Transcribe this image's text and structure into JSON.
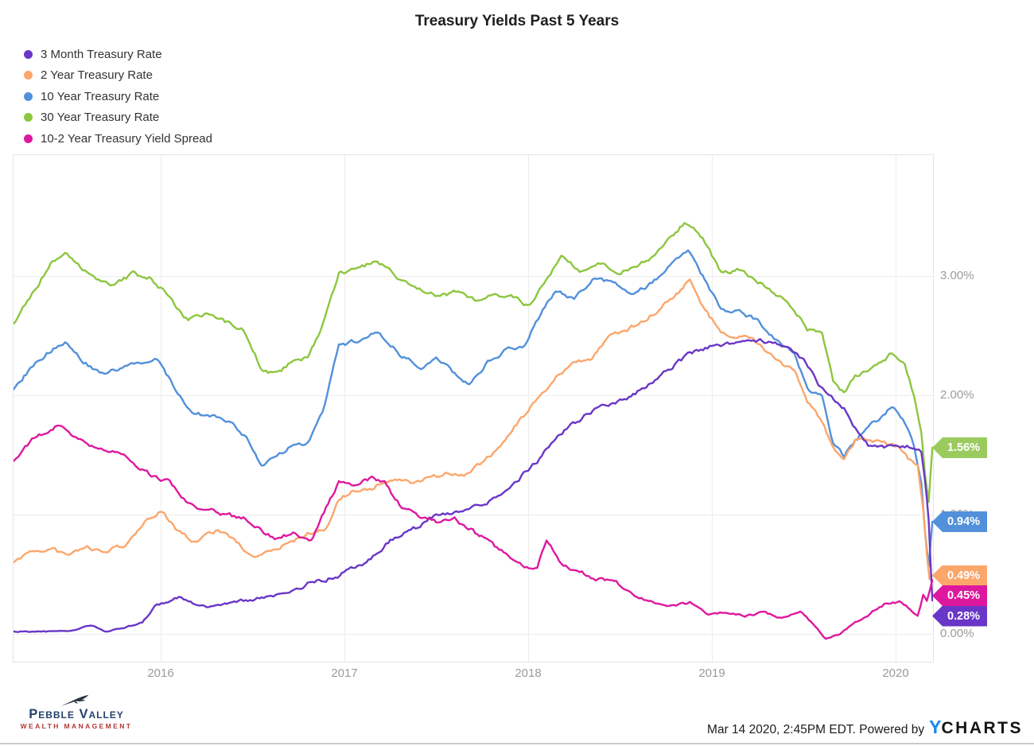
{
  "title": "Treasury Yields Past 5 Years",
  "chart_data": {
    "type": "line",
    "title": "Treasury Yields Past 5 Years",
    "legend_position": "top-left",
    "grid": true,
    "x_axis": {
      "tick_labels": [
        "2016",
        "2017",
        "2018",
        "2019",
        "2020"
      ],
      "tick_values": [
        2016,
        2017,
        2018,
        2019,
        2020
      ],
      "range": [
        2015.2,
        2020.2
      ]
    },
    "y_axis": {
      "tick_labels": [
        "3.00%",
        "2.00%",
        "1.00%",
        "0.00%"
      ],
      "tick_values": [
        3,
        2,
        1,
        0
      ],
      "unit": "%",
      "range": [
        -0.23,
        3.72
      ]
    },
    "series": [
      {
        "name": "3 Month Treasury Rate",
        "color": "#6936C7",
        "end_label": "0.28%",
        "end_value": 0.28,
        "points": [
          [
            2015.2,
            0.02
          ],
          [
            2015.35,
            0.02
          ],
          [
            2015.5,
            0.02
          ],
          [
            2015.62,
            0.07
          ],
          [
            2015.7,
            0.02
          ],
          [
            2015.8,
            0.05
          ],
          [
            2015.9,
            0.1
          ],
          [
            2015.98,
            0.25
          ],
          [
            2016.1,
            0.3
          ],
          [
            2016.25,
            0.23
          ],
          [
            2016.4,
            0.27
          ],
          [
            2016.55,
            0.3
          ],
          [
            2016.7,
            0.33
          ],
          [
            2016.8,
            0.42
          ],
          [
            2016.9,
            0.45
          ],
          [
            2017.0,
            0.51
          ],
          [
            2017.12,
            0.6
          ],
          [
            2017.25,
            0.78
          ],
          [
            2017.4,
            0.9
          ],
          [
            2017.5,
            1.0
          ],
          [
            2017.62,
            1.03
          ],
          [
            2017.75,
            1.08
          ],
          [
            2017.85,
            1.15
          ],
          [
            2017.95,
            1.3
          ],
          [
            2018.05,
            1.45
          ],
          [
            2018.15,
            1.65
          ],
          [
            2018.28,
            1.8
          ],
          [
            2018.4,
            1.92
          ],
          [
            2018.5,
            1.95
          ],
          [
            2018.62,
            2.05
          ],
          [
            2018.75,
            2.2
          ],
          [
            2018.88,
            2.35
          ],
          [
            2019.0,
            2.42
          ],
          [
            2019.12,
            2.44
          ],
          [
            2019.25,
            2.46
          ],
          [
            2019.38,
            2.43
          ],
          [
            2019.5,
            2.3
          ],
          [
            2019.58,
            2.1
          ],
          [
            2019.65,
            2.0
          ],
          [
            2019.72,
            1.9
          ],
          [
            2019.78,
            1.72
          ],
          [
            2019.85,
            1.58
          ],
          [
            2019.95,
            1.56
          ],
          [
            2020.05,
            1.57
          ],
          [
            2020.1,
            1.56
          ],
          [
            2020.14,
            1.52
          ],
          [
            2020.16,
            1.28
          ],
          [
            2020.18,
            0.95
          ],
          [
            2020.2,
            0.28
          ]
        ]
      },
      {
        "name": "2 Year Treasury Rate",
        "color": "#FBA66B",
        "end_label": "0.49%",
        "end_value": 0.49,
        "points": [
          [
            2015.2,
            0.6
          ],
          [
            2015.3,
            0.68
          ],
          [
            2015.4,
            0.72
          ],
          [
            2015.5,
            0.65
          ],
          [
            2015.6,
            0.72
          ],
          [
            2015.7,
            0.7
          ],
          [
            2015.8,
            0.74
          ],
          [
            2015.9,
            0.92
          ],
          [
            2016.0,
            1.04
          ],
          [
            2016.08,
            0.88
          ],
          [
            2016.18,
            0.78
          ],
          [
            2016.3,
            0.87
          ],
          [
            2016.4,
            0.78
          ],
          [
            2016.5,
            0.64
          ],
          [
            2016.6,
            0.68
          ],
          [
            2016.7,
            0.77
          ],
          [
            2016.8,
            0.84
          ],
          [
            2016.9,
            0.87
          ],
          [
            2016.97,
            1.12
          ],
          [
            2017.05,
            1.2
          ],
          [
            2017.15,
            1.22
          ],
          [
            2017.25,
            1.31
          ],
          [
            2017.35,
            1.27
          ],
          [
            2017.45,
            1.3
          ],
          [
            2017.55,
            1.35
          ],
          [
            2017.65,
            1.34
          ],
          [
            2017.75,
            1.44
          ],
          [
            2017.85,
            1.58
          ],
          [
            2017.95,
            1.78
          ],
          [
            2018.05,
            1.96
          ],
          [
            2018.15,
            2.15
          ],
          [
            2018.25,
            2.27
          ],
          [
            2018.35,
            2.32
          ],
          [
            2018.45,
            2.5
          ],
          [
            2018.55,
            2.56
          ],
          [
            2018.65,
            2.64
          ],
          [
            2018.75,
            2.78
          ],
          [
            2018.83,
            2.88
          ],
          [
            2018.88,
            2.97
          ],
          [
            2018.95,
            2.75
          ],
          [
            2019.05,
            2.52
          ],
          [
            2019.15,
            2.5
          ],
          [
            2019.25,
            2.44
          ],
          [
            2019.35,
            2.28
          ],
          [
            2019.45,
            2.2
          ],
          [
            2019.52,
            1.95
          ],
          [
            2019.6,
            1.78
          ],
          [
            2019.67,
            1.52
          ],
          [
            2019.72,
            1.48
          ],
          [
            2019.78,
            1.62
          ],
          [
            2019.85,
            1.63
          ],
          [
            2019.95,
            1.6
          ],
          [
            2020.02,
            1.56
          ],
          [
            2020.08,
            1.45
          ],
          [
            2020.12,
            1.4
          ],
          [
            2020.15,
            1.05
          ],
          [
            2020.17,
            0.65
          ],
          [
            2020.185,
            0.44
          ],
          [
            2020.2,
            0.49
          ]
        ]
      },
      {
        "name": "10 Year Treasury Rate",
        "color": "#5290DB",
        "end_label": "0.94%",
        "end_value": 0.94,
        "points": [
          [
            2015.2,
            2.05
          ],
          [
            2015.28,
            2.2
          ],
          [
            2015.38,
            2.35
          ],
          [
            2015.48,
            2.45
          ],
          [
            2015.58,
            2.28
          ],
          [
            2015.68,
            2.18
          ],
          [
            2015.78,
            2.22
          ],
          [
            2015.88,
            2.28
          ],
          [
            2015.98,
            2.3
          ],
          [
            2016.08,
            2.05
          ],
          [
            2016.18,
            1.85
          ],
          [
            2016.28,
            1.82
          ],
          [
            2016.38,
            1.78
          ],
          [
            2016.48,
            1.62
          ],
          [
            2016.55,
            1.42
          ],
          [
            2016.62,
            1.5
          ],
          [
            2016.72,
            1.58
          ],
          [
            2016.8,
            1.6
          ],
          [
            2016.88,
            1.85
          ],
          [
            2016.97,
            2.42
          ],
          [
            2017.05,
            2.45
          ],
          [
            2017.18,
            2.52
          ],
          [
            2017.3,
            2.35
          ],
          [
            2017.42,
            2.22
          ],
          [
            2017.5,
            2.32
          ],
          [
            2017.6,
            2.18
          ],
          [
            2017.68,
            2.08
          ],
          [
            2017.78,
            2.28
          ],
          [
            2017.88,
            2.38
          ],
          [
            2017.98,
            2.42
          ],
          [
            2018.08,
            2.72
          ],
          [
            2018.15,
            2.88
          ],
          [
            2018.25,
            2.8
          ],
          [
            2018.35,
            2.98
          ],
          [
            2018.45,
            2.95
          ],
          [
            2018.55,
            2.85
          ],
          [
            2018.65,
            2.92
          ],
          [
            2018.75,
            3.05
          ],
          [
            2018.83,
            3.18
          ],
          [
            2018.87,
            3.23
          ],
          [
            2018.95,
            3.0
          ],
          [
            2019.05,
            2.72
          ],
          [
            2019.15,
            2.7
          ],
          [
            2019.25,
            2.62
          ],
          [
            2019.35,
            2.45
          ],
          [
            2019.45,
            2.35
          ],
          [
            2019.52,
            2.05
          ],
          [
            2019.6,
            2.0
          ],
          [
            2019.66,
            1.6
          ],
          [
            2019.72,
            1.5
          ],
          [
            2019.78,
            1.62
          ],
          [
            2019.85,
            1.72
          ],
          [
            2019.92,
            1.82
          ],
          [
            2019.98,
            1.9
          ],
          [
            2020.05,
            1.78
          ],
          [
            2020.1,
            1.58
          ],
          [
            2020.14,
            1.25
          ],
          [
            2020.16,
            0.85
          ],
          [
            2020.18,
            0.55
          ],
          [
            2020.2,
            0.94
          ]
        ]
      },
      {
        "name": "30 Year Treasury Rate",
        "color": "#8DC63F",
        "flag_color": "#9BCB5E",
        "end_label": "1.56%",
        "end_value": 1.56,
        "points": [
          [
            2015.2,
            2.6
          ],
          [
            2015.3,
            2.85
          ],
          [
            2015.4,
            3.1
          ],
          [
            2015.48,
            3.22
          ],
          [
            2015.55,
            3.1
          ],
          [
            2015.65,
            2.95
          ],
          [
            2015.75,
            2.92
          ],
          [
            2015.85,
            3.02
          ],
          [
            2015.95,
            2.98
          ],
          [
            2016.05,
            2.82
          ],
          [
            2016.15,
            2.62
          ],
          [
            2016.25,
            2.68
          ],
          [
            2016.35,
            2.62
          ],
          [
            2016.45,
            2.55
          ],
          [
            2016.55,
            2.22
          ],
          [
            2016.62,
            2.18
          ],
          [
            2016.72,
            2.28
          ],
          [
            2016.8,
            2.32
          ],
          [
            2016.88,
            2.58
          ],
          [
            2016.97,
            3.02
          ],
          [
            2017.05,
            3.06
          ],
          [
            2017.18,
            3.12
          ],
          [
            2017.3,
            2.98
          ],
          [
            2017.42,
            2.88
          ],
          [
            2017.52,
            2.82
          ],
          [
            2017.62,
            2.88
          ],
          [
            2017.72,
            2.78
          ],
          [
            2017.82,
            2.86
          ],
          [
            2017.92,
            2.82
          ],
          [
            2018.0,
            2.74
          ],
          [
            2018.1,
            2.98
          ],
          [
            2018.18,
            3.15
          ],
          [
            2018.28,
            3.05
          ],
          [
            2018.38,
            3.12
          ],
          [
            2018.48,
            3.02
          ],
          [
            2018.58,
            3.08
          ],
          [
            2018.68,
            3.15
          ],
          [
            2018.78,
            3.32
          ],
          [
            2018.85,
            3.45
          ],
          [
            2018.95,
            3.32
          ],
          [
            2019.05,
            3.02
          ],
          [
            2019.15,
            3.05
          ],
          [
            2019.25,
            2.95
          ],
          [
            2019.35,
            2.85
          ],
          [
            2019.45,
            2.72
          ],
          [
            2019.52,
            2.55
          ],
          [
            2019.6,
            2.52
          ],
          [
            2019.66,
            2.1
          ],
          [
            2019.72,
            2.02
          ],
          [
            2019.78,
            2.15
          ],
          [
            2019.85,
            2.2
          ],
          [
            2019.92,
            2.28
          ],
          [
            2019.98,
            2.35
          ],
          [
            2020.05,
            2.25
          ],
          [
            2020.1,
            2.0
          ],
          [
            2020.14,
            1.7
          ],
          [
            2020.16,
            1.35
          ],
          [
            2020.18,
            1.12
          ],
          [
            2020.2,
            1.56
          ]
        ]
      },
      {
        "name": "10-2 Year Treasury Yield Spread",
        "color": "#DE189E",
        "end_label": "0.45%",
        "end_value": 0.45,
        "points": [
          [
            2015.2,
            1.45
          ],
          [
            2015.3,
            1.62
          ],
          [
            2015.4,
            1.72
          ],
          [
            2015.45,
            1.75
          ],
          [
            2015.55,
            1.62
          ],
          [
            2015.65,
            1.55
          ],
          [
            2015.75,
            1.52
          ],
          [
            2015.85,
            1.45
          ],
          [
            2015.95,
            1.32
          ],
          [
            2016.05,
            1.28
          ],
          [
            2016.15,
            1.08
          ],
          [
            2016.25,
            1.04
          ],
          [
            2016.35,
            1.0
          ],
          [
            2016.45,
            0.97
          ],
          [
            2016.55,
            0.86
          ],
          [
            2016.62,
            0.8
          ],
          [
            2016.72,
            0.84
          ],
          [
            2016.82,
            0.78
          ],
          [
            2016.9,
            1.05
          ],
          [
            2016.97,
            1.28
          ],
          [
            2017.05,
            1.26
          ],
          [
            2017.15,
            1.31
          ],
          [
            2017.22,
            1.26
          ],
          [
            2017.3,
            1.08
          ],
          [
            2017.4,
            0.98
          ],
          [
            2017.5,
            0.93
          ],
          [
            2017.6,
            0.96
          ],
          [
            2017.7,
            0.86
          ],
          [
            2017.78,
            0.78
          ],
          [
            2017.88,
            0.66
          ],
          [
            2017.98,
            0.55
          ],
          [
            2018.05,
            0.56
          ],
          [
            2018.1,
            0.78
          ],
          [
            2018.18,
            0.6
          ],
          [
            2018.28,
            0.52
          ],
          [
            2018.38,
            0.46
          ],
          [
            2018.48,
            0.42
          ],
          [
            2018.58,
            0.32
          ],
          [
            2018.68,
            0.26
          ],
          [
            2018.78,
            0.23
          ],
          [
            2018.88,
            0.26
          ],
          [
            2018.98,
            0.16
          ],
          [
            2019.08,
            0.18
          ],
          [
            2019.18,
            0.15
          ],
          [
            2019.28,
            0.18
          ],
          [
            2019.38,
            0.13
          ],
          [
            2019.48,
            0.2
          ],
          [
            2019.55,
            0.08
          ],
          [
            2019.62,
            -0.04
          ],
          [
            2019.7,
            0.0
          ],
          [
            2019.78,
            0.1
          ],
          [
            2019.85,
            0.16
          ],
          [
            2019.95,
            0.26
          ],
          [
            2020.02,
            0.27
          ],
          [
            2020.08,
            0.2
          ],
          [
            2020.12,
            0.16
          ],
          [
            2020.15,
            0.33
          ],
          [
            2020.17,
            0.28
          ],
          [
            2020.2,
            0.45
          ]
        ]
      }
    ]
  },
  "footer": {
    "brand": {
      "name_line": "Pebble Valley",
      "sub_line": "Wealth Management",
      "name_color": "#24426B",
      "sub_color": "#B03936"
    },
    "timestamp_text": "Mar 14 2020, 2:45PM EDT. Powered by",
    "ycharts_y": "Y",
    "ycharts_rest": "CHARTS",
    "ycharts_y_color": "#1787F8"
  }
}
